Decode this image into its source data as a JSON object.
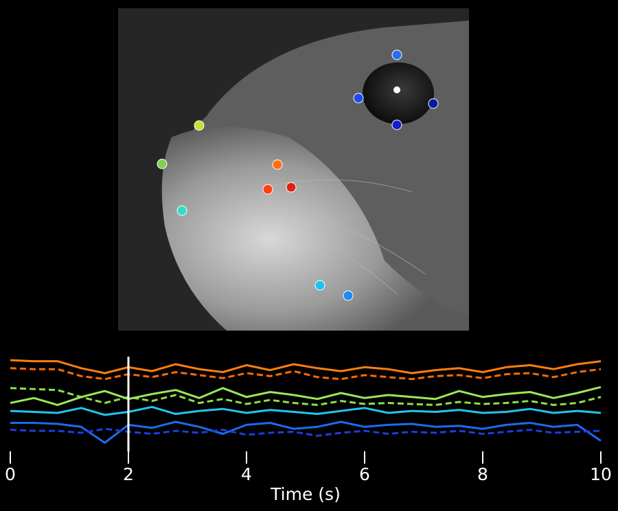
{
  "chart_data": {
    "type": "line",
    "x_label": "Time (s)",
    "xlim": [
      0,
      10
    ],
    "xticks": [
      0,
      2,
      4,
      6,
      8,
      10
    ],
    "cursor_x": 2,
    "ylim": [
      0,
      10
    ],
    "x": [
      0,
      0.4,
      0.8,
      1.2,
      1.6,
      2,
      2.4,
      2.8,
      3.2,
      3.6,
      4,
      4.4,
      4.8,
      5.2,
      5.6,
      6,
      6.4,
      6.8,
      7.2,
      7.6,
      8,
      8.4,
      8.8,
      9.2,
      9.6,
      10
    ],
    "series": [
      {
        "color": "#ff7f0e",
        "style": "solid",
        "values": [
          9.3,
          9.2,
          9.2,
          8.5,
          8.0,
          8.6,
          8.2,
          8.9,
          8.4,
          8.1,
          8.8,
          8.3,
          8.9,
          8.5,
          8.2,
          8.6,
          8.4,
          8.0,
          8.3,
          8.5,
          8.1,
          8.6,
          8.8,
          8.4,
          8.9,
          9.2
        ]
      },
      {
        "color": "#ff6a00",
        "style": "dashed",
        "values": [
          8.5,
          8.4,
          8.4,
          7.7,
          7.4,
          7.9,
          7.6,
          8.1,
          7.8,
          7.5,
          8.0,
          7.7,
          8.2,
          7.6,
          7.4,
          7.8,
          7.6,
          7.4,
          7.7,
          7.8,
          7.5,
          7.9,
          8.0,
          7.6,
          8.1,
          8.4
        ]
      },
      {
        "color": "#8ee04a",
        "style": "dashed",
        "values": [
          6.5,
          6.4,
          6.3,
          5.6,
          5.0,
          5.6,
          5.2,
          5.8,
          5.0,
          5.4,
          4.9,
          5.3,
          5.0,
          4.8,
          5.2,
          4.9,
          5.0,
          4.9,
          4.8,
          5.1,
          4.9,
          5.0,
          5.2,
          4.8,
          5.0,
          5.6
        ]
      },
      {
        "color": "#9be85c",
        "style": "solid",
        "values": [
          5.0,
          5.5,
          4.8,
          5.6,
          6.2,
          5.4,
          5.9,
          6.3,
          5.5,
          6.5,
          5.6,
          6.1,
          5.8,
          5.4,
          6.0,
          5.5,
          5.8,
          5.6,
          5.4,
          6.2,
          5.6,
          5.9,
          6.1,
          5.5,
          6.0,
          6.6
        ]
      },
      {
        "color": "#1ec8f0",
        "style": "solid",
        "values": [
          4.2,
          4.1,
          4.0,
          4.5,
          3.8,
          4.1,
          4.6,
          3.9,
          4.2,
          4.4,
          4.0,
          4.3,
          4.1,
          3.9,
          4.2,
          4.5,
          4.0,
          4.2,
          4.1,
          4.3,
          4.0,
          4.1,
          4.4,
          4.0,
          4.2,
          4.0
        ]
      },
      {
        "color": "#1a6cf0",
        "style": "solid",
        "values": [
          3.0,
          3.0,
          2.9,
          2.6,
          1.0,
          2.8,
          2.5,
          3.1,
          2.6,
          1.9,
          2.8,
          3.0,
          2.4,
          2.6,
          3.1,
          2.6,
          2.8,
          2.9,
          2.6,
          2.7,
          2.4,
          2.8,
          3.0,
          2.6,
          2.8,
          1.2
        ]
      },
      {
        "color": "#1e3ce0",
        "style": "dashed",
        "values": [
          2.3,
          2.2,
          2.2,
          2.0,
          2.4,
          2.1,
          1.9,
          2.2,
          2.0,
          2.3,
          1.8,
          2.0,
          2.1,
          1.7,
          2.0,
          2.2,
          1.9,
          2.1,
          2.0,
          2.2,
          1.9,
          2.1,
          2.3,
          2.0,
          2.1,
          2.2
        ]
      }
    ]
  }
}
